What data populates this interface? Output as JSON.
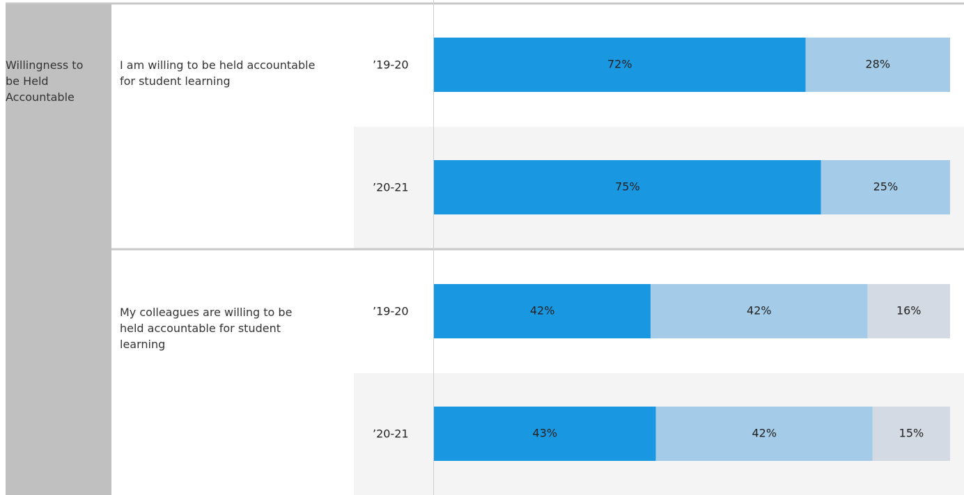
{
  "chart_data": {
    "type": "stacked-bar",
    "orientation": "horizontal",
    "group": "Willingness to be Held Accountable",
    "xlim": [
      0,
      100
    ],
    "colors": [
      "#1a97e1",
      "#a4cbe7",
      "#d3dae3"
    ],
    "questions": [
      {
        "label": "I am willing to be held accountable for student learning",
        "rows": [
          {
            "period": "’19-20",
            "values": [
              72,
              28
            ],
            "value_labels": [
              "72%",
              "28%"
            ]
          },
          {
            "period": "’20-21",
            "values": [
              75,
              25
            ],
            "value_labels": [
              "75%",
              "25%"
            ]
          }
        ]
      },
      {
        "label": "My colleagues are willing to be held accountable for student learning",
        "rows": [
          {
            "period": "’19-20",
            "values": [
              42,
              42,
              16
            ],
            "value_labels": [
              "42%",
              "42%",
              "16%"
            ]
          },
          {
            "period": "’20-21",
            "values": [
              43,
              42,
              15
            ],
            "value_labels": [
              "43%",
              "42%",
              "15%"
            ]
          }
        ]
      }
    ]
  }
}
